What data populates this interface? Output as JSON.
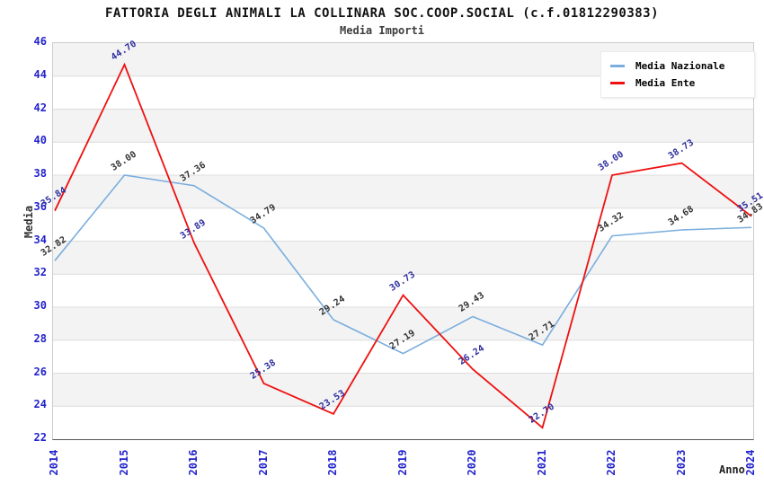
{
  "title": "FATTORIA DEGLI ANIMALI LA COLLINARA SOC.COOP.SOCIAL (c.f.01812290383)",
  "subtitle": "Media Importi",
  "legend": {
    "items": [
      {
        "label": "Media Nazionale",
        "color": "#7aaede"
      },
      {
        "label": "Media Ente",
        "color": "#ee1111"
      }
    ]
  },
  "chart_data": {
    "type": "line",
    "title": "FATTORIA DEGLI ANIMALI LA COLLINARA SOC.COOP.SOCIAL (c.f.01812290383)",
    "subtitle": "Media Importi",
    "xlabel": "Anno",
    "ylabel": "Media",
    "x": [
      2014,
      2015,
      2016,
      2017,
      2018,
      2019,
      2020,
      2021,
      2022,
      2023,
      2024
    ],
    "series": [
      {
        "name": "Media Nazionale",
        "color": "#7aaede",
        "label_color": "#303030",
        "values": [
          32.82,
          38.0,
          37.36,
          34.79,
          29.24,
          27.19,
          29.43,
          27.71,
          34.32,
          34.68,
          34.83
        ]
      },
      {
        "name": "Media Ente",
        "color": "#ee1111",
        "label_color": "#2b2b9e",
        "values": [
          35.84,
          44.7,
          33.89,
          25.38,
          23.53,
          30.73,
          26.24,
          22.7,
          38.0,
          38.73,
          35.51
        ]
      }
    ],
    "ylim": [
      22,
      46
    ],
    "ytick_step": 2,
    "tick_color": "#2323cc",
    "grid": "horizontal, alternating gray bands",
    "legend_position": "top-right"
  }
}
